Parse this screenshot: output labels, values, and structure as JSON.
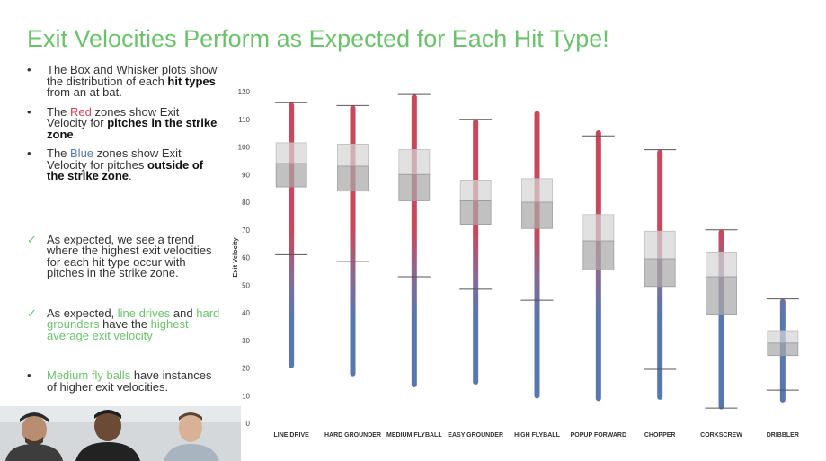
{
  "slide": {
    "title": "Exit Velocities Perform as Expected for Each Hit Type!",
    "bullets": [
      {
        "pre": "The Box and Whisker plots show the distribution of each ",
        "em": "hit types",
        "post": " from an at bat."
      },
      {
        "pre": "The ",
        "color_word": "Red",
        "mid": " zones show Exit Velocity for ",
        "em": "pitches in the strike zone",
        "post": "."
      },
      {
        "pre": "The ",
        "color_word": "Blue",
        "mid": " zones show Exit Velocity for pitches ",
        "em": "outside of the strike zone",
        "post": "."
      }
    ],
    "checks": [
      {
        "text": "As expected, we see a trend where the highest exit velocities for each hit type occur with pitches in the strike zone."
      },
      {
        "pre": "As expected, ",
        "g1": "line drives",
        "mid": " and ",
        "g2": "hard grounders",
        "mid2": " have the ",
        "g3": "highest average exit velocity"
      },
      {
        "pre": "Medium fly balls",
        "post": " have instances of higher exit velocities."
      }
    ]
  },
  "colors": {
    "title": "#6cc26c",
    "red": "#c9475b",
    "blue": "#5877b0",
    "green": "#6cc26c"
  },
  "chart_data": {
    "type": "box",
    "ylabel": "Exit Velocity",
    "ylim": [
      0,
      120
    ],
    "yticks": [
      0,
      10,
      20,
      30,
      40,
      50,
      60,
      70,
      80,
      90,
      100,
      110,
      120
    ],
    "categories": [
      "LINE DRIVE",
      "HARD GROUNDER",
      "MEDIUM FLYBALL",
      "EASY GROUNDER",
      "HIGH FLYBALL",
      "POPUP FORWARD",
      "CHOPPER",
      "CORKSCREW",
      "DRIBBLER"
    ],
    "series": [
      {
        "min": 20,
        "max": 116,
        "whisker_low": 61,
        "whisker_high": 116,
        "q1": 85.5,
        "median": 94,
        "q3": 101.5
      },
      {
        "min": 17,
        "max": 115,
        "whisker_low": 58.5,
        "whisker_high": 115,
        "q1": 84,
        "median": 93,
        "q3": 101
      },
      {
        "min": 13,
        "max": 119,
        "whisker_low": 53,
        "whisker_high": 119,
        "q1": 80.5,
        "median": 90,
        "q3": 99
      },
      {
        "min": 14,
        "max": 110,
        "whisker_low": 48.5,
        "whisker_high": 110,
        "q1": 72,
        "median": 80.5,
        "q3": 88
      },
      {
        "min": 9,
        "max": 113,
        "whisker_low": 44.5,
        "whisker_high": 113,
        "q1": 70.5,
        "median": 80,
        "q3": 88.5
      },
      {
        "min": 8,
        "max": 106,
        "whisker_low": 26.5,
        "whisker_high": 104,
        "q1": 55.5,
        "median": 66,
        "q3": 75.5
      },
      {
        "min": 8.5,
        "max": 99,
        "whisker_low": 19.5,
        "whisker_high": 99,
        "q1": 49.5,
        "median": 59.5,
        "q3": 69.5
      },
      {
        "min": 5,
        "max": 70,
        "whisker_low": 5.5,
        "whisker_high": 70,
        "q1": 39.5,
        "median": 53,
        "q3": 62
      },
      {
        "min": 7.5,
        "max": 45,
        "whisker_low": 12,
        "whisker_high": 45,
        "q1": 24.5,
        "median": 29,
        "q3": 33.5
      }
    ]
  }
}
